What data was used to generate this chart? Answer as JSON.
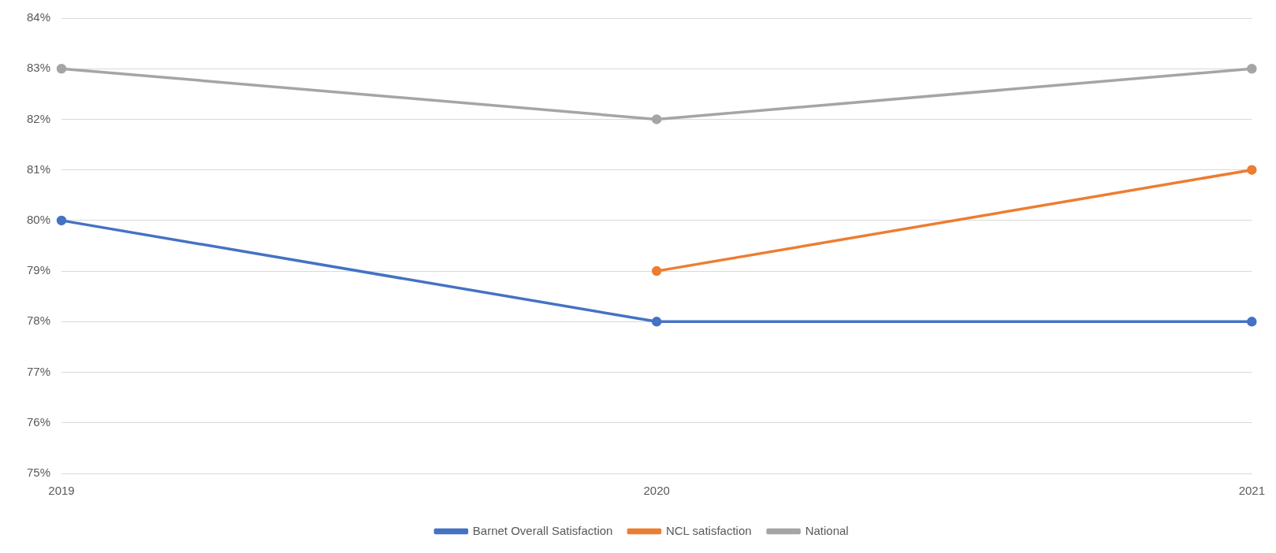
{
  "chart_data": {
    "type": "line",
    "categories": [
      "2019",
      "2020",
      "2021"
    ],
    "series": [
      {
        "name": "Barnet Overall Satisfaction",
        "color": "#4472c4",
        "values": [
          80,
          78,
          78
        ]
      },
      {
        "name": "NCL satisfaction",
        "color": "#ed7d31",
        "values": [
          null,
          79,
          81
        ]
      },
      {
        "name": "National",
        "color": "#a5a5a5",
        "values": [
          83,
          82,
          83
        ]
      }
    ],
    "ylim": [
      75,
      84
    ],
    "yticks": [
      {
        "value": 75,
        "label": "75%"
      },
      {
        "value": 76,
        "label": "76%"
      },
      {
        "value": 77,
        "label": "77%"
      },
      {
        "value": 78,
        "label": "78%"
      },
      {
        "value": 79,
        "label": "79%"
      },
      {
        "value": 80,
        "label": "80%"
      },
      {
        "value": 81,
        "label": "81%"
      },
      {
        "value": 82,
        "label": "82%"
      },
      {
        "value": 83,
        "label": "83%"
      },
      {
        "value": 84,
        "label": "84%"
      }
    ],
    "grid": "y",
    "legend": "bottom",
    "marker": "circle"
  }
}
